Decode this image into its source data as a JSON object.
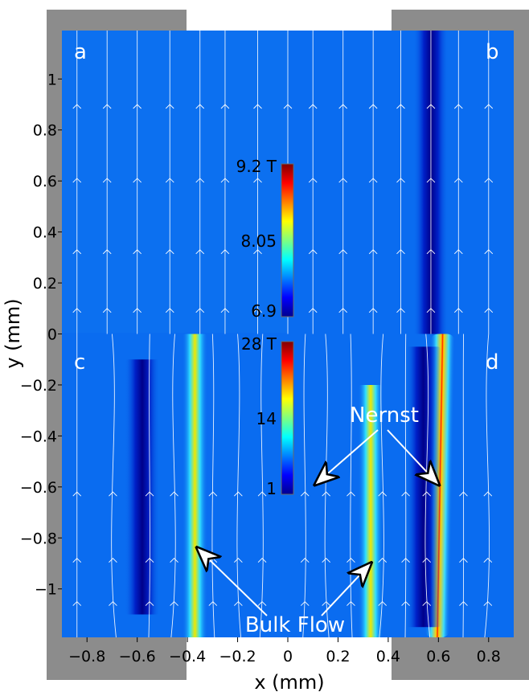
{
  "chart_data": {
    "type": "heatmap",
    "xlabel": "x (mm)",
    "ylabel": "y (mm)",
    "xlim": [
      -0.9,
      0.9
    ],
    "ylim": [
      -1.19,
      1.19
    ],
    "x_ticks": [
      "−0.8",
      "−0.6",
      "−0.4",
      "−0.2",
      "0",
      "0.2",
      "0.4",
      "0.6",
      "0.8"
    ],
    "y_ticks": [
      "1",
      "0.8",
      "0.6",
      "0.4",
      "0.2",
      "0",
      "−0.2",
      "−0.4",
      "−0.6",
      "−0.8",
      "−1"
    ],
    "x_tick_values": [
      -0.8,
      -0.6,
      -0.4,
      -0.2,
      0,
      0.2,
      0.4,
      0.6,
      0.8
    ],
    "y_tick_values": [
      1,
      0.8,
      0.6,
      0.4,
      0.2,
      0,
      -0.2,
      -0.4,
      -0.6,
      -0.8,
      -1
    ],
    "panels": [
      {
        "label": "a",
        "x_range": [
          -0.9,
          0
        ],
        "y_range": [
          0,
          1.19
        ]
      },
      {
        "label": "b",
        "x_range": [
          0,
          0.9
        ],
        "y_range": [
          0,
          1.19
        ]
      },
      {
        "label": "c",
        "x_range": [
          -0.9,
          0
        ],
        "y_range": [
          -1.19,
          0
        ]
      },
      {
        "label": "d",
        "x_range": [
          0,
          0.9
        ],
        "y_range": [
          -1.19,
          0
        ]
      }
    ],
    "colorbars": [
      {
        "ticks": [
          "9.2 T",
          "8.05",
          "6.9"
        ],
        "max": 9.2,
        "mid": 8.05,
        "min": 6.9
      },
      {
        "ticks": [
          "28 T",
          "14",
          "1"
        ],
        "max": 28,
        "mid": 14,
        "min": 1
      }
    ],
    "high_field_bands": [
      {
        "panel": "b",
        "x_center": 0.57,
        "y_range": [
          0,
          1.19
        ],
        "level": "low"
      },
      {
        "panel": "c",
        "x_center": -0.37,
        "y_range": [
          -1.19,
          0
        ],
        "level": "high"
      },
      {
        "panel": "c",
        "x_center": -0.58,
        "y_range": [
          -1.1,
          -0.1
        ],
        "level": "low"
      },
      {
        "panel": "d",
        "x_center": 0.33,
        "y_range": [
          -1.19,
          -0.2
        ],
        "level": "high"
      },
      {
        "panel": "d",
        "x_center": 0.64,
        "y_range": [
          -1.19,
          0
        ],
        "level": "high"
      },
      {
        "panel": "d",
        "x_center": 0.54,
        "y_range": [
          -1.15,
          -0.05
        ],
        "level": "low"
      }
    ],
    "annotations": [
      {
        "text": "Nernst",
        "arrows_to": [
          [
            0.11,
            -0.59
          ],
          [
            0.6,
            -0.59
          ]
        ]
      },
      {
        "text": "Bulk Flow",
        "arrows_to": [
          [
            -0.36,
            -0.84
          ],
          [
            0.33,
            -0.9
          ]
        ]
      }
    ]
  },
  "colors": {
    "background_field": "#0a6cf0",
    "gray_frame": "#8c8c8c",
    "streamline": "#ffffff"
  }
}
